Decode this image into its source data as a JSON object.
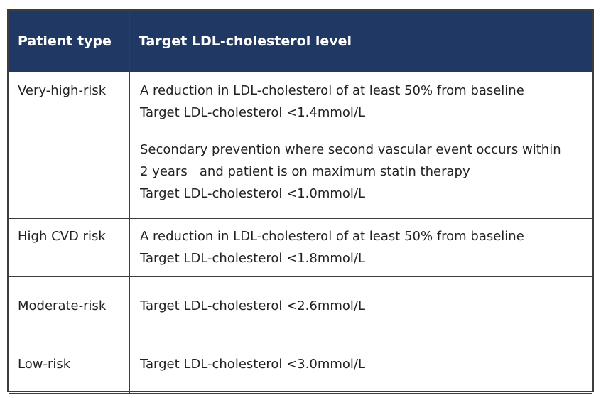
{
  "table": {
    "headers": [
      "Patient type",
      "Target LDL-cholesterol level"
    ],
    "rows": [
      {
        "type": "Very-high-risk",
        "paragraphs": [
          [
            "A reduction in LDL-cholesterol of at least 50% from baseline",
            "Target LDL-cholesterol <1.4mmol/L"
          ],
          [
            "Secondary prevention where second vascular event occurs within",
            "2 years   and patient is on maximum statin therapy",
            "Target LDL-cholesterol <1.0mmol/L"
          ]
        ]
      },
      {
        "type": "High CVD risk",
        "paragraphs": [
          [
            "A reduction in LDL-cholesterol of at least 50% from baseline",
            "Target LDL-cholesterol <1.8mmol/L"
          ]
        ]
      },
      {
        "type": "Moderate-risk",
        "paragraphs": [
          [
            "Target LDL-cholesterol <2.6mmol/L"
          ]
        ]
      },
      {
        "type": "Low-risk",
        "paragraphs": [
          [
            "Target LDL-cholesterol <3.0mmol/L"
          ]
        ]
      }
    ]
  },
  "colors": {
    "header_bg": "#203864",
    "header_text": "#ffffff",
    "border": "#3d3d3d"
  }
}
